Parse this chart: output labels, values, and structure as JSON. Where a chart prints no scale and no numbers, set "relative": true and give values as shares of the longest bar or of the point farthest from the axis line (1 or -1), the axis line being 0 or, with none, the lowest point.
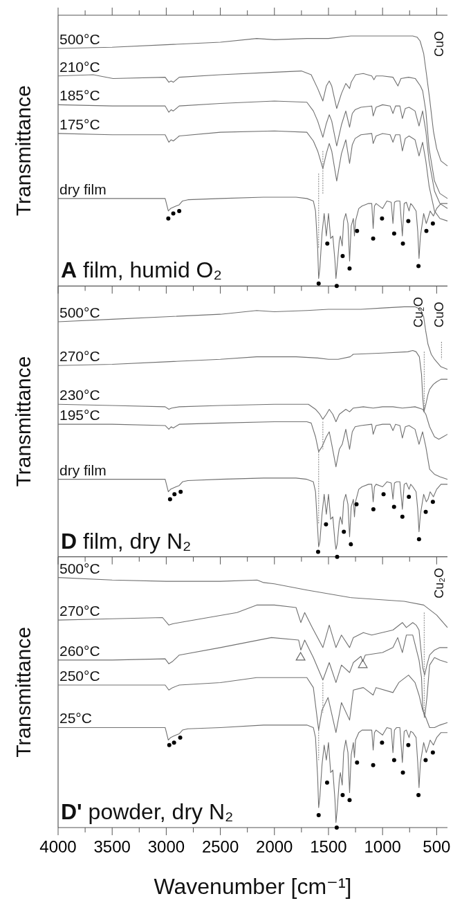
{
  "chart_data": [
    {
      "type": "line",
      "title": "A film, humid O₂",
      "ylabel": "Transmittance",
      "relative": true,
      "tick_labels": false,
      "xlim": [
        4000,
        400
      ],
      "xticks": [
        4000,
        {
          "value": 3750,
          "label": null
        },
        3500,
        {
          "value": 3250,
          "label": null
        },
        3000,
        {
          "value": 2750,
          "label": null
        },
        2500,
        {
          "value": 2250,
          "label": null
        },
        2000,
        {
          "value": 1750,
          "label": null
        },
        1500,
        {
          "value": 1250,
          "label": null
        },
        1000,
        {
          "value": 750,
          "label": null
        },
        500
      ],
      "annotations": [
        "CuO"
      ],
      "series": [
        {
          "name": "500°C",
          "color": "#707070",
          "x": [
            4000,
            3500,
            3000,
            2500,
            2164,
            2000,
            1700,
            1500,
            1293,
            1000,
            800,
            721,
            680,
            653,
            620,
            595,
            565,
            530,
            500,
            460,
            400
          ],
          "values": [
            0.95,
            0.955,
            0.965,
            0.975,
            0.99,
            0.985,
            0.99,
            0.99,
            1.0,
            1.0,
            1.0,
            1.0,
            0.995,
            0.98,
            0.93,
            0.85,
            0.75,
            0.62,
            0.55,
            0.5,
            0.48
          ]
        },
        {
          "name": "210°C",
          "color": "#707070",
          "x": [
            4000,
            3675,
            3492,
            3010,
            2976,
            2955,
            2935,
            2880,
            2500,
            2000,
            1751,
            1660,
            1600,
            1552,
            1520,
            1493,
            1470,
            1424,
            1380,
            1340,
            1305,
            1290,
            1250,
            1178,
            1100,
            1080,
            1060,
            1000,
            904,
            858,
            830,
            760,
            698,
            650,
            629,
            600,
            570,
            520,
            470,
            400
          ],
          "values": [
            0.84,
            0.845,
            0.83,
            0.835,
            0.815,
            0.82,
            0.815,
            0.835,
            0.845,
            0.855,
            0.86,
            0.845,
            0.79,
            0.74,
            0.8,
            0.82,
            0.8,
            0.71,
            0.77,
            0.81,
            0.79,
            0.815,
            0.845,
            0.85,
            0.84,
            0.825,
            0.84,
            0.84,
            0.835,
            0.8,
            0.83,
            0.835,
            0.83,
            0.8,
            0.78,
            0.7,
            0.55,
            0.42,
            0.37,
            0.35
          ]
        },
        {
          "name": "185°C",
          "color": "#707070",
          "x": [
            4000,
            3500,
            3010,
            2976,
            2955,
            2935,
            2880,
            2500,
            2000,
            1700,
            1640,
            1600,
            1552,
            1520,
            1493,
            1470,
            1424,
            1380,
            1340,
            1305,
            1280,
            1254,
            1200,
            1100,
            1087,
            1060,
            1000,
            930,
            904,
            880,
            840,
            817,
            790,
            755,
            700,
            663,
            630,
            600,
            570,
            520,
            470,
            400
          ],
          "values": [
            0.725,
            0.72,
            0.72,
            0.695,
            0.705,
            0.7,
            0.72,
            0.73,
            0.74,
            0.735,
            0.7,
            0.66,
            0.595,
            0.65,
            0.685,
            0.66,
            0.56,
            0.645,
            0.7,
            0.635,
            0.69,
            0.705,
            0.715,
            0.72,
            0.68,
            0.715,
            0.725,
            0.72,
            0.69,
            0.72,
            0.72,
            0.67,
            0.71,
            0.715,
            0.7,
            0.64,
            0.7,
            0.62,
            0.5,
            0.38,
            0.33,
            0.31
          ]
        },
        {
          "name": "175°C",
          "color": "#707070",
          "x": [
            4000,
            3500,
            3010,
            2976,
            2955,
            2935,
            2880,
            2500,
            2000,
            1700,
            1640,
            1600,
            1552,
            1520,
            1493,
            1470,
            1424,
            1380,
            1340,
            1305,
            1280,
            1254,
            1200,
            1100,
            1087,
            1060,
            1000,
            930,
            904,
            880,
            840,
            817,
            790,
            755,
            700,
            663,
            630,
            600,
            570,
            520,
            470,
            400
          ],
          "values": [
            0.61,
            0.605,
            0.605,
            0.575,
            0.585,
            0.58,
            0.6,
            0.615,
            0.62,
            0.615,
            0.58,
            0.54,
            0.47,
            0.53,
            0.57,
            0.54,
            0.42,
            0.53,
            0.585,
            0.49,
            0.565,
            0.59,
            0.605,
            0.61,
            0.57,
            0.6,
            0.61,
            0.605,
            0.575,
            0.605,
            0.605,
            0.54,
            0.59,
            0.6,
            0.585,
            0.52,
            0.575,
            0.5,
            0.4,
            0.3,
            0.27,
            0.26
          ]
        },
        {
          "name": "dry film",
          "color": "#707070",
          "x": [
            4000,
            3500,
            3010,
            2981,
            2960,
            2935,
            2910,
            2880,
            2850,
            2800,
            2500,
            2100,
            1800,
            1700,
            1640,
            1620,
            1600,
            1591,
            1580,
            1560,
            1540,
            1520,
            1500,
            1480,
            1460,
            1440,
            1431,
            1420,
            1400,
            1390,
            1373,
            1360,
            1340,
            1320,
            1305,
            1290,
            1270,
            1260,
            1250,
            1220,
            1190,
            1130,
            1100,
            1087,
            1075,
            1060,
            1000,
            960,
            920,
            904,
            890,
            870,
            840,
            817,
            800,
            780,
            755,
            740,
            720,
            690,
            675,
            663,
            650,
            620,
            596,
            580,
            560,
            530,
            500,
            460,
            400
          ],
          "values": [
            0.35,
            0.35,
            0.35,
            0.3,
            0.31,
            0.315,
            0.32,
            0.325,
            0.34,
            0.345,
            0.35,
            0.355,
            0.355,
            0.35,
            0.34,
            0.3,
            0.15,
            0.03,
            0.07,
            0.21,
            0.29,
            0.2,
            0.29,
            0.19,
            0.2,
            0.1,
            0.03,
            0.08,
            0.18,
            0.2,
            0.16,
            0.26,
            0.29,
            0.25,
            0.1,
            0.24,
            0.27,
            0.2,
            0.26,
            0.31,
            0.32,
            0.33,
            0.33,
            0.23,
            0.32,
            0.33,
            0.31,
            0.34,
            0.335,
            0.25,
            0.335,
            0.34,
            0.34,
            0.2,
            0.33,
            0.335,
            0.3,
            0.33,
            0.32,
            0.3,
            0.22,
            0.11,
            0.2,
            0.29,
            0.25,
            0.27,
            0.3,
            0.28,
            0.31,
            0.33,
            0.33
          ]
        },
        {
          "type": "scatter",
          "marker": "circle",
          "color": "#000000",
          "x": [
            2981,
            2935,
            2880,
            1591,
            1511,
            1424,
            1369,
            1305,
            1236,
            1087,
            1005,
            893,
            812,
            762,
            668,
            595,
            535
          ],
          "values": [
            0.27,
            0.29,
            0.3,
            0.01,
            0.17,
            0,
            0.12,
            0.07,
            0.22,
            0.19,
            0.27,
            0.21,
            0.17,
            0.26,
            0.08,
            0.22,
            0.25
          ]
        },
        {
          "type": "line",
          "line_style": "dotted",
          "color": "#8c8c8c",
          "x": [
            1552,
            1552
          ],
          "values": [
            0.54,
            0.37
          ]
        },
        {
          "type": "line",
          "line_style": "dotted",
          "color": "#8c8c8c",
          "x": [
            1591,
            1591
          ],
          "values": [
            0.45,
            0.15
          ]
        }
      ]
    },
    {
      "type": "line",
      "title": "D film, dry N₂",
      "ylabel": "Transmittance",
      "relative": true,
      "tick_labels": false,
      "xlim": [
        4000,
        400
      ],
      "xticks": [
        4000,
        {
          "value": 3750,
          "label": null
        },
        3500,
        {
          "value": 3250,
          "label": null
        },
        3000,
        {
          "value": 2750,
          "label": null
        },
        2500,
        {
          "value": 2250,
          "label": null
        },
        2000,
        {
          "value": 1750,
          "label": null
        },
        1500,
        {
          "value": 1250,
          "label": null
        },
        1000,
        {
          "value": 750,
          "label": null
        },
        500
      ],
      "annotations": [
        "Cu₂O",
        "CuO"
      ],
      "series": [
        {
          "name": "500°C",
          "color": "#707070",
          "x": [
            4000,
            3500,
            3000,
            2500,
            2164,
            2000,
            1700,
            1500,
            1200,
            1000,
            800,
            700,
            650,
            620,
            600,
            580,
            550,
            520,
            500,
            460,
            400
          ],
          "values": [
            0.94,
            0.95,
            0.96,
            0.97,
            0.985,
            0.98,
            0.985,
            0.99,
            0.99,
            0.995,
            1.0,
            1.0,
            0.99,
            0.96,
            0.9,
            0.85,
            0.81,
            0.79,
            0.78,
            0.76,
            0.75
          ]
        },
        {
          "name": "270°C",
          "color": "#707070",
          "x": [
            4000,
            3500,
            3000,
            2500,
            2164,
            2000,
            1800,
            1600,
            1500,
            1410,
            1300,
            1271,
            1000,
            766,
            721,
            690,
            660,
            640,
            629,
            618,
            600,
            580,
            565,
            530,
            500,
            460,
            400
          ],
          "values": [
            0.765,
            0.77,
            0.78,
            0.79,
            0.8,
            0.8,
            0.8,
            0.795,
            0.79,
            0.79,
            0.8,
            0.81,
            0.815,
            0.82,
            0.825,
            0.82,
            0.8,
            0.73,
            0.64,
            0.58,
            0.61,
            0.65,
            0.67,
            0.69,
            0.7,
            0.71,
            0.71
          ]
        },
        {
          "name": "230°C",
          "color": "#707070",
          "x": [
            4000,
            3500,
            3010,
            2976,
            2950,
            2880,
            2500,
            2000,
            1686,
            1620,
            1580,
            1552,
            1520,
            1493,
            1460,
            1431,
            1400,
            1340,
            1305,
            1270,
            1178,
            1087,
            1000,
            904,
            817,
            700,
            629,
            600,
            565,
            520,
            480,
            440,
            400
          ],
          "values": [
            0.61,
            0.605,
            0.6,
            0.59,
            0.595,
            0.6,
            0.605,
            0.61,
            0.61,
            0.59,
            0.57,
            0.55,
            0.57,
            0.59,
            0.57,
            0.54,
            0.57,
            0.59,
            0.58,
            0.595,
            0.6,
            0.595,
            0.6,
            0.6,
            0.595,
            0.6,
            0.59,
            0.57,
            0.52,
            0.48,
            0.47,
            0.48,
            0.49
          ]
        },
        {
          "name": "195°C",
          "color": "#707070",
          "x": [
            4000,
            3500,
            3010,
            2976,
            2955,
            2935,
            2880,
            2500,
            2000,
            1700,
            1660,
            1620,
            1591,
            1560,
            1520,
            1493,
            1470,
            1431,
            1400,
            1373,
            1340,
            1305,
            1280,
            1254,
            1200,
            1100,
            1087,
            1060,
            1000,
            930,
            904,
            880,
            840,
            817,
            790,
            755,
            700,
            663,
            630,
            600,
            565,
            520,
            470,
            400
          ],
          "values": [
            0.53,
            0.53,
            0.525,
            0.51,
            0.52,
            0.515,
            0.53,
            0.535,
            0.54,
            0.54,
            0.535,
            0.48,
            0.42,
            0.44,
            0.48,
            0.5,
            0.45,
            0.36,
            0.43,
            0.45,
            0.51,
            0.43,
            0.5,
            0.52,
            0.525,
            0.53,
            0.49,
            0.525,
            0.53,
            0.53,
            0.505,
            0.53,
            0.525,
            0.475,
            0.52,
            0.525,
            0.51,
            0.45,
            0.5,
            0.44,
            0.35,
            0.33,
            0.32,
            0.31
          ]
        },
        {
          "name": "dry film",
          "color": "#707070",
          "x": [
            4000,
            3500,
            3010,
            2981,
            2960,
            2935,
            2910,
            2880,
            2850,
            2800,
            2500,
            2100,
            1800,
            1700,
            1640,
            1620,
            1600,
            1591,
            1580,
            1560,
            1540,
            1520,
            1500,
            1480,
            1460,
            1440,
            1431,
            1420,
            1400,
            1390,
            1373,
            1360,
            1340,
            1320,
            1305,
            1290,
            1270,
            1260,
            1250,
            1220,
            1190,
            1130,
            1100,
            1087,
            1075,
            1060,
            1000,
            960,
            920,
            904,
            890,
            870,
            840,
            817,
            800,
            780,
            755,
            740,
            720,
            690,
            675,
            663,
            650,
            620,
            596,
            580,
            560,
            530,
            500,
            460,
            400
          ],
          "values": [
            0.31,
            0.31,
            0.31,
            0.26,
            0.27,
            0.275,
            0.28,
            0.285,
            0.3,
            0.305,
            0.31,
            0.315,
            0.315,
            0.31,
            0.3,
            0.26,
            0.11,
            0.04,
            0.06,
            0.17,
            0.25,
            0.17,
            0.25,
            0.15,
            0.16,
            0.06,
            0.03,
            0.05,
            0.14,
            0.16,
            0.13,
            0.22,
            0.25,
            0.21,
            0.08,
            0.2,
            0.23,
            0.16,
            0.22,
            0.27,
            0.28,
            0.29,
            0.29,
            0.22,
            0.28,
            0.29,
            0.28,
            0.3,
            0.295,
            0.23,
            0.295,
            0.3,
            0.3,
            0.19,
            0.29,
            0.295,
            0.27,
            0.29,
            0.28,
            0.26,
            0.19,
            0.1,
            0.17,
            0.25,
            0.22,
            0.23,
            0.26,
            0.24,
            0.27,
            0.29,
            0.29
          ]
        },
        {
          "type": "scatter",
          "marker": "circle",
          "color": "#000000",
          "x": [
            2965,
            2924,
            2867,
            1596,
            1523,
            1420,
            1358,
            1293,
            1241,
            1085,
            991,
            894,
            817,
            757,
            663,
            601,
            535
          ],
          "values": [
            0.23,
            0.25,
            0.26,
            0.02,
            0.13,
            0,
            0.1,
            0.05,
            0.21,
            0.19,
            0.25,
            0.2,
            0.16,
            0.24,
            0.07,
            0.18,
            0.22
          ]
        },
        {
          "type": "line",
          "line_style": "dotted",
          "color": "#8c8c8c",
          "x": [
            1552,
            1552
          ],
          "values": [
            0.54,
            0.43
          ]
        },
        {
          "type": "line",
          "line_style": "dotted",
          "color": "#8c8c8c",
          "x": [
            1591,
            1591
          ],
          "values": [
            0.43,
            0.13
          ]
        },
        {
          "type": "line",
          "line_style": "dotted",
          "color": "#8c8c8c",
          "x": [
            615,
            615
          ],
          "values": [
            0.82,
            0.59
          ]
        },
        {
          "type": "line",
          "line_style": "dotted",
          "color": "#8c8c8c",
          "x": [
            455,
            455
          ],
          "values": [
            0.86,
            0.79
          ]
        }
      ]
    },
    {
      "type": "line",
      "title": "D' powder, dry N₂",
      "ylabel": "Transmittance",
      "xlabel": "Wavenumber [cm⁻¹]",
      "relative": true,
      "tick_labels": "x",
      "xlim": [
        4000,
        400
      ],
      "xticks": [
        4000,
        {
          "value": 3750,
          "label": null
        },
        3500,
        {
          "value": 3250,
          "label": null
        },
        3000,
        {
          "value": 2750,
          "label": null
        },
        2500,
        {
          "value": 2250,
          "label": null
        },
        2000,
        {
          "value": 1750,
          "label": null
        },
        1500,
        {
          "value": 1250,
          "label": null
        },
        1000,
        {
          "value": 750,
          "label": null
        },
        500
      ],
      "annotations": [
        "Cu₂O"
      ],
      "series": [
        {
          "name": "500°C",
          "color": "#707070",
          "x": [
            4000,
            3500,
            3000,
            2500,
            2160,
            2100,
            2000,
            1700,
            1300,
            800,
            620,
            500,
            400
          ],
          "values": [
            1.0,
            0.99,
            0.985,
            0.985,
            0.99,
            0.98,
            0.975,
            0.95,
            0.92,
            0.905,
            0.89,
            0.85,
            0.8
          ]
        },
        {
          "name": "270°C",
          "color": "#707070",
          "x": [
            4000,
            3500,
            3034,
            2976,
            2940,
            2880,
            2346,
            2164,
            2000,
            1800,
            1756,
            1720,
            1650,
            1552,
            1493,
            1431,
            1380,
            1305,
            1270,
            1178,
            1100,
            904,
            817,
            780,
            721,
            690,
            663,
            629,
            611,
            590,
            565,
            520,
            470,
            400
          ],
          "values": [
            0.83,
            0.835,
            0.84,
            0.81,
            0.815,
            0.82,
            0.86,
            0.89,
            0.89,
            0.88,
            0.82,
            0.86,
            0.8,
            0.72,
            0.81,
            0.72,
            0.77,
            0.72,
            0.76,
            0.78,
            0.77,
            0.79,
            0.82,
            0.8,
            0.82,
            0.81,
            0.79,
            0.64,
            0.61,
            0.65,
            0.69,
            0.71,
            0.72,
            0.72
          ]
        },
        {
          "name": "260°C",
          "color": "#707070",
          "x": [
            4000,
            3500,
            3010,
            2976,
            2940,
            2880,
            2500,
            2027,
            1776,
            1756,
            1720,
            1640,
            1552,
            1493,
            1431,
            1380,
            1305,
            1270,
            1200,
            1183,
            1160,
            1000,
            904,
            860,
            817,
            780,
            721,
            663,
            640,
            629,
            611,
            590,
            565,
            520,
            470,
            400
          ],
          "values": [
            0.67,
            0.67,
            0.675,
            0.655,
            0.665,
            0.69,
            0.72,
            0.76,
            0.75,
            0.71,
            0.75,
            0.68,
            0.59,
            0.66,
            0.58,
            0.65,
            0.62,
            0.66,
            0.685,
            0.665,
            0.69,
            0.7,
            0.72,
            0.76,
            0.7,
            0.77,
            0.77,
            0.67,
            0.6,
            0.48,
            0.44,
            0.52,
            0.65,
            0.68,
            0.67,
            0.66
          ]
        },
        {
          "name": "250°C",
          "color": "#707070",
          "x": [
            4000,
            3500,
            3010,
            2976,
            2940,
            2880,
            2500,
            2164,
            1700,
            1640,
            1591,
            1560,
            1504,
            1431,
            1380,
            1305,
            1270,
            1178,
            1087,
            1060,
            904,
            850,
            760,
            700,
            663,
            630,
            600,
            565,
            520,
            470,
            400
          ],
          "values": [
            0.57,
            0.57,
            0.57,
            0.55,
            0.56,
            0.57,
            0.58,
            0.6,
            0.6,
            0.56,
            0.39,
            0.47,
            0.52,
            0.38,
            0.5,
            0.43,
            0.55,
            0.56,
            0.53,
            0.56,
            0.54,
            0.58,
            0.61,
            0.58,
            0.53,
            0.47,
            0.44,
            0.4,
            0.4,
            0.41,
            0.42
          ]
        },
        {
          "name": "25°C",
          "color": "#707070",
          "x": [
            4000,
            3500,
            3010,
            2981,
            2960,
            2935,
            2910,
            2880,
            2850,
            2800,
            2500,
            2100,
            1800,
            1700,
            1640,
            1620,
            1600,
            1591,
            1580,
            1560,
            1540,
            1520,
            1500,
            1480,
            1460,
            1440,
            1431,
            1420,
            1400,
            1390,
            1373,
            1360,
            1340,
            1320,
            1305,
            1290,
            1270,
            1260,
            1250,
            1220,
            1190,
            1130,
            1100,
            1087,
            1075,
            1060,
            1000,
            960,
            920,
            904,
            890,
            870,
            840,
            817,
            800,
            780,
            755,
            740,
            720,
            690,
            675,
            663,
            650,
            620,
            596,
            580,
            560,
            530,
            500,
            460,
            400
          ],
          "values": [
            0.4,
            0.4,
            0.4,
            0.35,
            0.36,
            0.365,
            0.37,
            0.375,
            0.39,
            0.395,
            0.4,
            0.41,
            0.41,
            0.41,
            0.4,
            0.36,
            0.2,
            0.08,
            0.12,
            0.25,
            0.33,
            0.27,
            0.34,
            0.22,
            0.23,
            0.11,
            0.02,
            0.07,
            0.19,
            0.22,
            0.17,
            0.3,
            0.35,
            0.3,
            0.14,
            0.29,
            0.34,
            0.28,
            0.35,
            0.38,
            0.39,
            0.39,
            0.39,
            0.31,
            0.38,
            0.39,
            0.37,
            0.4,
            0.395,
            0.3,
            0.39,
            0.4,
            0.4,
            0.26,
            0.385,
            0.39,
            0.36,
            0.385,
            0.38,
            0.36,
            0.26,
            0.16,
            0.26,
            0.34,
            0.3,
            0.32,
            0.35,
            0.33,
            0.36,
            0.38,
            0.38
          ]
        },
        {
          "type": "scatter",
          "marker": "circle",
          "color": "#000000",
          "x": [
            2972,
            2928,
            2871,
            1591,
            1513,
            1424,
            1369,
            1305,
            1236,
            1087,
            1005,
            893,
            812,
            762,
            668,
            602,
            535
          ],
          "values": [
            0.33,
            0.34,
            0.36,
            0.05,
            0.18,
            0,
            0.13,
            0.11,
            0.26,
            0.25,
            0.34,
            0.27,
            0.22,
            0.33,
            0.13,
            0.27,
            0.3
          ]
        },
        {
          "type": "scatter",
          "marker": "triangle",
          "color": "#666666",
          "x": [
            1758,
            1183
          ],
          "values": [
            0.68,
            0.65
          ]
        },
        {
          "type": "line",
          "line_style": "dotted",
          "color": "#8c8c8c",
          "x": [
            1552,
            1552
          ],
          "values": [
            0.58,
            0.46
          ]
        },
        {
          "type": "line",
          "line_style": "dotted",
          "color": "#8c8c8c",
          "x": [
            1591,
            1591
          ],
          "values": [
            0.39,
            0.27
          ]
        },
        {
          "type": "line",
          "line_style": "dotted",
          "color": "#8c8c8c",
          "x": [
            615,
            615
          ],
          "values": [
            0.86,
            0.44
          ]
        }
      ]
    }
  ]
}
